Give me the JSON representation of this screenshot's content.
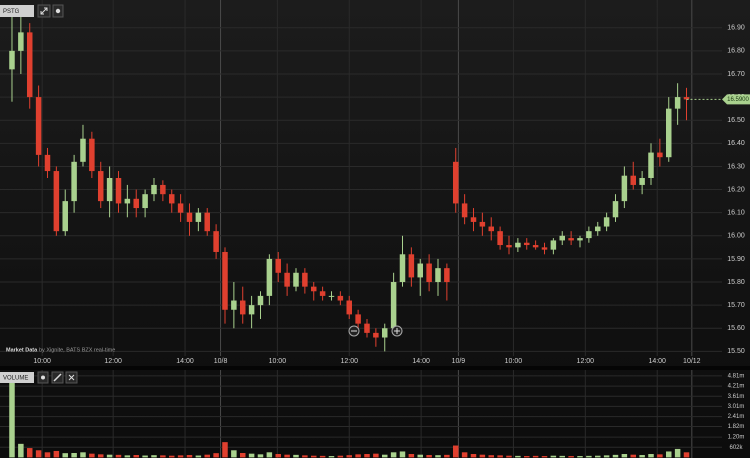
{
  "chart_data": [
    {
      "type": "candlestick",
      "symbol": "PSTG",
      "source_title": "Market Data",
      "source": "by Xignite, BATS BZX real-time",
      "up_color": "#a9d18e",
      "down_color": "#e0402f",
      "grid": true,
      "x": [
        0,
        1,
        2,
        3,
        4,
        5,
        6,
        7,
        8,
        9,
        10,
        11,
        12,
        13,
        14,
        15,
        16,
        17,
        18,
        19,
        20,
        21,
        22,
        23,
        24,
        25,
        26,
        27,
        28,
        29,
        30,
        31,
        32,
        33,
        34,
        35,
        36,
        37,
        38,
        39,
        40,
        41,
        42,
        43,
        44,
        45,
        46,
        47,
        48,
        49,
        50,
        51,
        52,
        53,
        54,
        55,
        56,
        57,
        58,
        59,
        60,
        61,
        62,
        63,
        64,
        65,
        66,
        67,
        68,
        69,
        70,
        71,
        72,
        73,
        74,
        75,
        76
      ],
      "open": [
        16.72,
        16.8,
        16.88,
        16.6,
        16.35,
        16.28,
        16.02,
        16.15,
        16.32,
        16.42,
        16.28,
        16.15,
        16.25,
        16.14,
        16.16,
        16.12,
        16.18,
        16.22,
        16.18,
        16.14,
        16.1,
        16.06,
        16.1,
        16.02,
        15.93,
        15.68,
        15.72,
        15.66,
        15.7,
        15.74,
        15.9,
        15.84,
        15.78,
        15.84,
        15.78,
        15.76,
        15.74,
        15.74,
        15.72,
        15.66,
        15.62,
        15.58,
        15.56,
        15.6,
        15.8,
        15.92,
        15.82,
        15.88,
        15.8,
        15.86,
        16.32,
        16.14,
        16.08,
        16.06,
        16.04,
        16.02,
        15.96,
        15.95,
        15.97,
        15.96,
        15.95,
        15.94,
        15.98,
        15.99,
        15.98,
        15.99,
        16.02,
        16.04,
        16.08,
        16.15,
        16.26,
        16.22,
        16.25,
        16.36,
        16.34,
        16.55,
        16.6
      ],
      "high": [
        16.95,
        16.97,
        16.92,
        16.65,
        16.38,
        16.3,
        16.2,
        16.35,
        16.48,
        16.45,
        16.32,
        16.3,
        16.28,
        16.22,
        16.2,
        16.2,
        16.25,
        16.24,
        16.2,
        16.18,
        16.14,
        16.12,
        16.12,
        16.05,
        15.95,
        15.8,
        15.78,
        15.74,
        15.76,
        15.92,
        15.93,
        15.88,
        15.86,
        15.86,
        15.8,
        15.78,
        15.76,
        15.76,
        15.74,
        15.68,
        15.64,
        15.6,
        15.62,
        15.84,
        16.0,
        15.95,
        15.9,
        15.92,
        15.9,
        15.88,
        16.38,
        16.18,
        16.12,
        16.1,
        16.08,
        16.04,
        16.0,
        15.99,
        15.99,
        15.98,
        15.97,
        15.99,
        16.02,
        16.02,
        16.0,
        16.04,
        16.06,
        16.1,
        16.18,
        16.3,
        16.32,
        16.28,
        16.4,
        16.42,
        16.6,
        16.66,
        16.64
      ],
      "low": [
        16.58,
        16.7,
        16.55,
        16.3,
        16.25,
        16.0,
        16.0,
        16.1,
        16.3,
        16.25,
        16.12,
        16.08,
        16.1,
        16.08,
        16.08,
        16.08,
        16.15,
        16.15,
        16.1,
        16.06,
        16.0,
        16.02,
        16.0,
        15.9,
        15.62,
        15.6,
        15.62,
        15.6,
        15.64,
        15.7,
        15.8,
        15.74,
        15.76,
        15.75,
        15.72,
        15.72,
        15.72,
        15.7,
        15.64,
        15.58,
        15.56,
        15.52,
        15.5,
        15.58,
        15.78,
        15.78,
        15.74,
        15.76,
        15.74,
        15.72,
        16.1,
        16.05,
        16.02,
        16.0,
        15.98,
        15.94,
        15.92,
        15.93,
        15.94,
        15.94,
        15.92,
        15.92,
        15.96,
        15.96,
        15.95,
        15.97,
        16.0,
        16.02,
        16.06,
        16.12,
        16.2,
        16.18,
        16.22,
        16.3,
        16.32,
        16.48,
        16.5
      ],
      "close": [
        16.8,
        16.88,
        16.6,
        16.35,
        16.28,
        16.02,
        16.15,
        16.32,
        16.42,
        16.28,
        16.15,
        16.25,
        16.14,
        16.16,
        16.12,
        16.18,
        16.22,
        16.18,
        16.14,
        16.1,
        16.06,
        16.1,
        16.02,
        15.93,
        15.68,
        15.72,
        15.66,
        15.7,
        15.74,
        15.9,
        15.84,
        15.78,
        15.84,
        15.78,
        15.76,
        15.74,
        15.74,
        15.72,
        15.66,
        15.62,
        15.58,
        15.56,
        15.6,
        15.8,
        15.92,
        15.82,
        15.88,
        15.8,
        15.86,
        15.8,
        16.14,
        16.08,
        16.06,
        16.04,
        16.02,
        15.96,
        15.95,
        15.97,
        15.96,
        15.95,
        15.94,
        15.98,
        16.0,
        15.98,
        15.99,
        16.02,
        16.04,
        16.08,
        16.15,
        16.26,
        16.22,
        16.25,
        16.36,
        16.34,
        16.55,
        16.6,
        16.59
      ],
      "last_price": {
        "value": 16.59,
        "label": "16.5900"
      },
      "xlim": [
        -1.35,
        80
      ],
      "xticks": [
        {
          "value": 3.4,
          "label": "10:00"
        },
        {
          "value": 11.4,
          "label": "12:00"
        },
        {
          "value": 19.5,
          "label": "14:00"
        },
        {
          "value": 23.5,
          "label": "10/8"
        },
        {
          "value": 29.9,
          "label": "10:00"
        },
        {
          "value": 38,
          "label": "12:00"
        },
        {
          "value": 46.1,
          "label": "14:00"
        },
        {
          "value": 50.3,
          "label": "10/9"
        },
        {
          "value": 56.5,
          "label": "10:00"
        },
        {
          "value": 64.6,
          "label": "12:00"
        },
        {
          "value": 72.7,
          "label": "14:00"
        },
        {
          "value": 76.6,
          "label": "10/12"
        }
      ],
      "ylim": [
        15.48,
        17.02
      ],
      "yticks": [
        {
          "value": 15.5,
          "label": "15.50"
        },
        {
          "value": 15.6,
          "label": "15.60"
        },
        {
          "value": 15.7,
          "label": "15.70"
        },
        {
          "value": 15.8,
          "label": "15.80"
        },
        {
          "value": 15.9,
          "label": "15.90"
        },
        {
          "value": 16.0,
          "label": "16.00"
        },
        {
          "value": 16.1,
          "label": "16.10"
        },
        {
          "value": 16.2,
          "label": "16.20"
        },
        {
          "value": 16.3,
          "label": "16.30"
        },
        {
          "value": 16.4,
          "label": "16.40"
        },
        {
          "value": 16.5,
          "label": "16.50"
        },
        {
          "value": 16.6,
          "label": "16.60"
        },
        {
          "value": 16.7,
          "label": "16.70"
        },
        {
          "value": 16.8,
          "label": "16.80"
        },
        {
          "value": 16.9,
          "label": "16.90"
        }
      ]
    },
    {
      "type": "bar",
      "title": "VOLUME",
      "x": [
        0,
        1,
        2,
        3,
        4,
        5,
        6,
        7,
        8,
        9,
        10,
        11,
        12,
        13,
        14,
        15,
        16,
        17,
        18,
        19,
        20,
        21,
        22,
        23,
        24,
        25,
        26,
        27,
        28,
        29,
        30,
        31,
        32,
        33,
        34,
        35,
        36,
        37,
        38,
        39,
        40,
        41,
        42,
        43,
        44,
        45,
        46,
        47,
        48,
        49,
        50,
        51,
        52,
        53,
        54,
        55,
        56,
        57,
        58,
        59,
        60,
        61,
        62,
        63,
        64,
        65,
        66,
        67,
        68,
        69,
        70,
        71,
        72,
        73,
        74,
        75,
        76
      ],
      "values": [
        4800000,
        800000,
        550000,
        420000,
        300000,
        380000,
        250000,
        260000,
        300000,
        220000,
        180000,
        160000,
        150000,
        120000,
        140000,
        110000,
        130000,
        120000,
        100000,
        120000,
        140000,
        110000,
        160000,
        250000,
        900000,
        420000,
        260000,
        220000,
        180000,
        300000,
        200000,
        160000,
        150000,
        120000,
        100000,
        90000,
        80000,
        100000,
        130000,
        180000,
        200000,
        220000,
        160000,
        300000,
        350000,
        200000,
        160000,
        140000,
        130000,
        150000,
        700000,
        300000,
        200000,
        160000,
        130000,
        120000,
        100000,
        90000,
        80000,
        90000,
        80000,
        100000,
        90000,
        80000,
        80000,
        90000,
        100000,
        120000,
        150000,
        200000,
        160000,
        140000,
        200000,
        180000,
        350000,
        500000,
        300000
      ],
      "xlim": [
        -1.35,
        80
      ],
      "ylim": [
        0,
        5040000
      ],
      "yticks": [
        {
          "value": 602000,
          "label": "602k"
        },
        {
          "value": 1200000,
          "label": "1.20m"
        },
        {
          "value": 1820000,
          "label": "1.82m"
        },
        {
          "value": 2410000,
          "label": "2.41m"
        },
        {
          "value": 3010000,
          "label": "3.01m"
        },
        {
          "value": 3610000,
          "label": "3.61m"
        },
        {
          "value": 4210000,
          "label": "4.21m"
        },
        {
          "value": 4810000,
          "label": "4.81m"
        }
      ]
    }
  ]
}
